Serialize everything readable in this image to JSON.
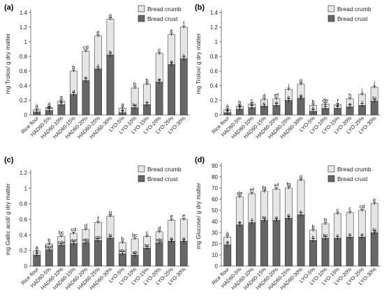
{
  "colors": {
    "crumb": "#e6e6e6",
    "crust": "#666666",
    "outline": "#222222",
    "axis": "#555555",
    "grid_text": "#222222"
  },
  "chart_data": [
    {
      "type": "bar",
      "panel_label": "(a)",
      "ylabel": "mg Trolox/ g dry matter",
      "ylim": [
        0,
        1.4
      ],
      "yticks": [
        "0",
        "0.2",
        "0.4",
        "0.6",
        "0.8",
        "1",
        "1.2",
        "1.4"
      ],
      "categories": [
        "Rice flour",
        "HAD60-5%",
        "HAD60-10%",
        "HAD60-15%",
        "HAD60-20%",
        "HAD60-25%",
        "HAD60-30%",
        "LYO-5%",
        "LYO-10%",
        "LYO-15%",
        "LYO-20%",
        "LYO-25%",
        "LYO-30%"
      ],
      "series": [
        {
          "name": "Bread crumb",
          "values": [
            0.07,
            0.1,
            0.19,
            0.6,
            0.87,
            1.08,
            1.31,
            0.09,
            0.37,
            0.42,
            0.84,
            1.1,
            1.2
          ]
        },
        {
          "name": "Bread crust",
          "values": [
            0.04,
            0.06,
            0.14,
            0.28,
            0.47,
            0.63,
            0.82,
            0.03,
            0.1,
            0.14,
            0.45,
            0.69,
            0.77
          ]
        }
      ],
      "crumb_letters": [
        "a",
        "a",
        "a",
        "b",
        "cd",
        "e",
        "g",
        "a",
        "b",
        "b",
        "c",
        "e",
        "f"
      ],
      "crust_letters": [
        "",
        "ab",
        "b",
        "d",
        "e",
        "f",
        "h",
        "a",
        "bc",
        "c",
        "e",
        "g",
        "h"
      ],
      "legend": [
        "Bread crumb",
        "Bread crust"
      ],
      "legend_position": "top-right"
    },
    {
      "type": "bar",
      "panel_label": "(b)",
      "ylabel": "mg Trolox/ g dry matter",
      "ylim": [
        0,
        1.4
      ],
      "yticks": [
        "0",
        "0.2",
        "0.4",
        "0.6",
        "0.8",
        "1",
        "1.2",
        "1.4"
      ],
      "categories": [
        "Rice flour",
        "HAD60-5%",
        "HAD60-10%",
        "HAD60-15%",
        "HAD60-20%",
        "HAD60-25%",
        "HAD60-30%",
        "LYO-5%",
        "LYO-10%",
        "LYO-15%",
        "LYO-20%",
        "LYO-25%",
        "LYO-30%"
      ],
      "series": [
        {
          "name": "Bread crumb",
          "values": [
            0.07,
            0.12,
            0.15,
            0.21,
            0.22,
            0.35,
            0.42,
            0.13,
            0.15,
            0.14,
            0.22,
            0.28,
            0.38
          ]
        },
        {
          "name": "Bread crust",
          "values": [
            0.03,
            0.08,
            0.1,
            0.12,
            0.13,
            0.2,
            0.23,
            0.05,
            0.09,
            0.09,
            0.11,
            0.13,
            0.19
          ]
        }
      ],
      "crumb_letters": [
        "a",
        "b",
        "c",
        "d",
        "ef",
        "i",
        "g",
        "b",
        "de",
        "f",
        "h",
        "i",
        "j"
      ],
      "crust_letters": [
        "a",
        "b",
        "b",
        "c",
        "d",
        "h",
        "g",
        "b",
        "c",
        "d",
        "e",
        "f",
        "fg"
      ],
      "legend": [
        "Bread crumb",
        "Bread crust"
      ],
      "legend_position": "top-right"
    },
    {
      "type": "bar",
      "panel_label": "(c)",
      "ylabel": "mg Gallic acid/ g dry matter",
      "ylim": [
        0,
        1.2
      ],
      "yticks": [
        "0",
        "0.2",
        "0.4",
        "0.6",
        "0.8",
        "1",
        "1.2"
      ],
      "categories": [
        "Rice flour",
        "HAD60-5%",
        "HAD60-10%",
        "HAD60-15%",
        "HAD60-20%",
        "HAD60-25%",
        "HAD60-30%",
        "LYO-5%",
        "LYO-10%",
        "LYO-15%",
        "LYO-20%",
        "LYO-25%",
        "LYO-30%"
      ],
      "series": [
        {
          "name": "Bread crumb",
          "values": [
            0.19,
            0.28,
            0.38,
            0.42,
            0.47,
            0.56,
            0.64,
            0.3,
            0.35,
            0.38,
            0.44,
            0.59,
            0.6
          ]
        },
        {
          "name": "Bread crust",
          "values": [
            0.14,
            0.21,
            0.27,
            0.29,
            0.3,
            0.33,
            0.36,
            0.16,
            0.14,
            0.23,
            0.3,
            0.32,
            0.32
          ]
        }
      ],
      "crumb_letters": [
        "a",
        "b",
        "bc",
        "cd",
        "d",
        "f",
        "g",
        "b",
        "bc",
        "c",
        "d",
        "e",
        "e"
      ],
      "crust_letters": [
        "a",
        "bcd",
        "cde",
        "def",
        "efg",
        "ghi",
        "hi",
        "abc",
        "ab",
        "bc",
        "efg",
        "g",
        "g"
      ],
      "legend": [
        "Bread crumb",
        "Bread crust"
      ],
      "legend_position": "top-right"
    },
    {
      "type": "bar",
      "panel_label": "(d)",
      "ylabel": "mg Glucose/ g dry matter",
      "ylim": [
        0,
        90
      ],
      "yticks": [
        "0",
        "10",
        "20",
        "30",
        "40",
        "50",
        "60",
        "70",
        "80",
        "90"
      ],
      "categories": [
        "Rice flour",
        "HAD60-5%",
        "HAD60-10%",
        "HAD60-15%",
        "HAD60-20%",
        "HAD60-25%",
        "HAD60-30%",
        "LYO-5%",
        "LYO-10%",
        "LYO-15%",
        "LYO-20%",
        "LYO-25%",
        "LYO-30%"
      ],
      "series": [
        {
          "name": "Bread crumb",
          "values": [
            26,
            62,
            65,
            67,
            69,
            70,
            77,
            32,
            38,
            47,
            48,
            50,
            56
          ]
        },
        {
          "name": "Bread crust",
          "values": [
            19,
            37,
            39,
            41,
            41,
            43,
            46,
            23,
            25,
            25,
            26,
            26,
            30
          ]
        }
      ],
      "crumb_letters": [
        "a",
        "de",
        "ef",
        "fg",
        "ef",
        "fg",
        "g",
        "b",
        "b",
        "c",
        "c",
        "cd",
        "e"
      ],
      "crust_letters": [
        "a",
        "e",
        "f",
        "fg",
        "g",
        "g",
        "h",
        "b",
        "bc",
        "c",
        "c",
        "c",
        "fg"
      ],
      "legend": [
        "Bread crumb",
        "Bread crust"
      ],
      "legend_position": "top-right"
    }
  ]
}
